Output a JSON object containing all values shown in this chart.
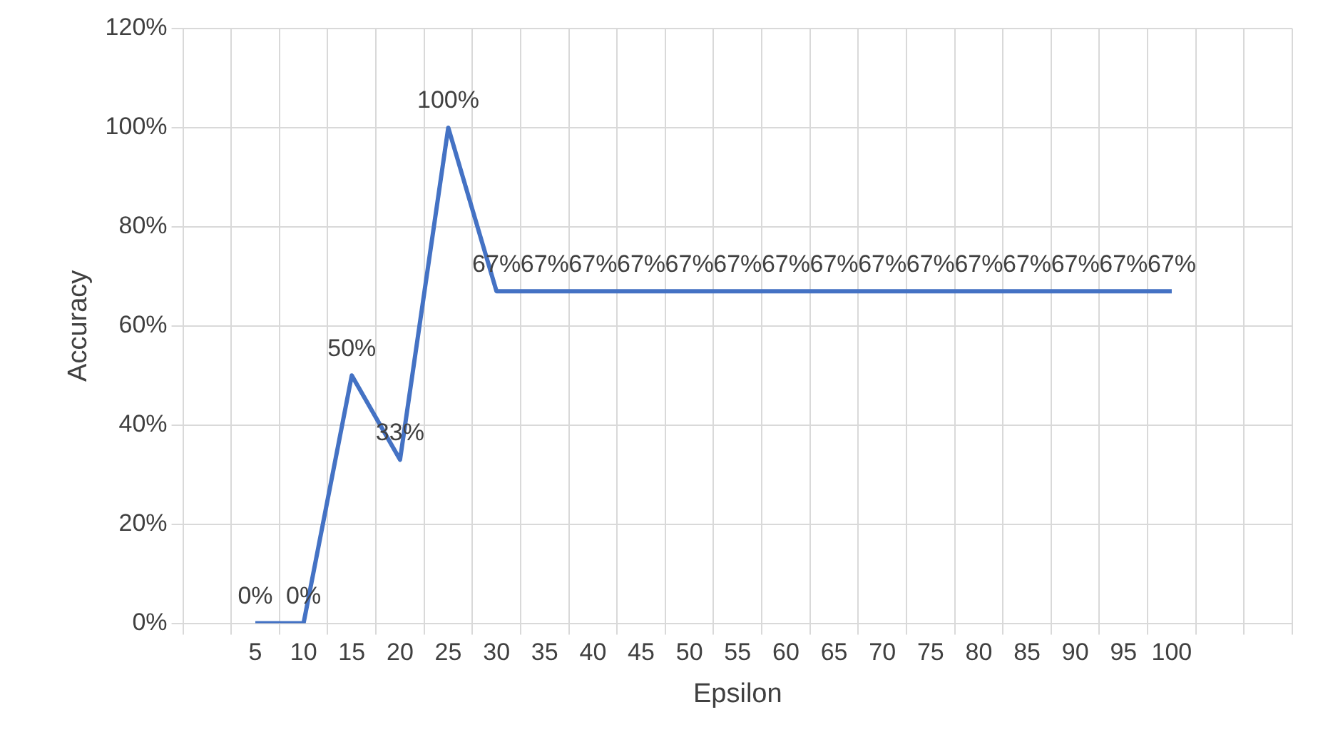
{
  "chart_data": {
    "type": "line",
    "xlabel": "Epsilon",
    "ylabel": "Accuracy",
    "categories": [
      null,
      "5",
      "10",
      "15",
      "20",
      "25",
      "30",
      "35",
      "40",
      "45",
      "50",
      "55",
      "60",
      "65",
      "70",
      "75",
      "80",
      "85",
      "90",
      "95",
      "100",
      null,
      null
    ],
    "series": [
      {
        "color": "#4472c4",
        "values": [
          null,
          0,
          0,
          50,
          33,
          100,
          67,
          67,
          67,
          67,
          67,
          67,
          67,
          67,
          67,
          67,
          67,
          67,
          67,
          67,
          67,
          null,
          null
        ],
        "value_labels": [
          null,
          "0%",
          "0%",
          "50%",
          "33%",
          "100%",
          "67%",
          "67%",
          "67%",
          "67%",
          "67%",
          "67%",
          "67%",
          "67%",
          "67%",
          "67%",
          "67%",
          "67%",
          "67%",
          "67%",
          "67%",
          null,
          null
        ]
      }
    ],
    "ylim": [
      0,
      120
    ],
    "yticks": [
      {
        "value": 0,
        "label": "0%"
      },
      {
        "value": 20,
        "label": "20%"
      },
      {
        "value": 40,
        "label": "40%"
      },
      {
        "value": 60,
        "label": "60%"
      },
      {
        "value": 80,
        "label": "80%"
      },
      {
        "value": 100,
        "label": "100%"
      },
      {
        "value": 120,
        "label": "120%"
      }
    ],
    "grid": true,
    "legend": false,
    "marker": "none",
    "line_style": "solid"
  }
}
